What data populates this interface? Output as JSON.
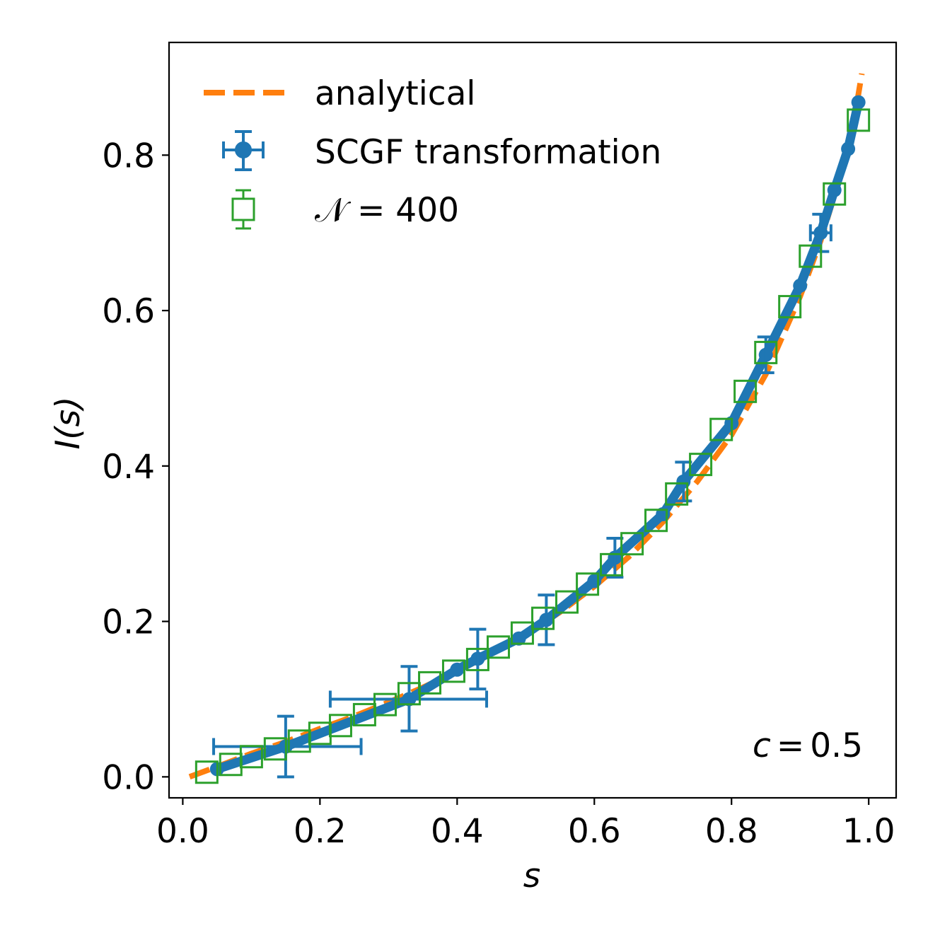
{
  "chart_data": {
    "type": "line",
    "title": "",
    "xlabel": "s",
    "ylabel": "I(s)",
    "xlim": [
      -0.02,
      1.04
    ],
    "ylim": [
      -0.027,
      0.945
    ],
    "xticks": [
      0.0,
      0.2,
      0.4,
      0.6,
      0.8,
      1.0
    ],
    "xtick_labels": [
      "0.0",
      "0.2",
      "0.4",
      "0.6",
      "0.8",
      "1.0"
    ],
    "yticks": [
      0.0,
      0.2,
      0.4,
      0.6,
      0.8
    ],
    "ytick_labels": [
      "0.0",
      "0.2",
      "0.4",
      "0.6",
      "0.8"
    ],
    "grid": false,
    "legend_position": "top-left",
    "annotation": {
      "var": "c",
      "eq": "=",
      "val": "0.5",
      "position": "bottom-right"
    },
    "series": [
      {
        "name": "analytical",
        "style": "dashed",
        "color": "#ff7f0e",
        "x": [
          0.01,
          0.05,
          0.1,
          0.15,
          0.2,
          0.25,
          0.3,
          0.35,
          0.4,
          0.45,
          0.5,
          0.55,
          0.6,
          0.65,
          0.7,
          0.75,
          0.8,
          0.85,
          0.9,
          0.93,
          0.95,
          0.97,
          0.98,
          0.99
        ],
        "y": [
          0.0,
          0.013,
          0.03,
          0.045,
          0.062,
          0.078,
          0.096,
          0.115,
          0.136,
          0.158,
          0.183,
          0.212,
          0.245,
          0.283,
          0.328,
          0.38,
          0.44,
          0.518,
          0.618,
          0.69,
          0.748,
          0.812,
          0.852,
          0.905
        ]
      },
      {
        "name": "SCGF transformation",
        "style": "line+errorbar",
        "color": "#1f77b4",
        "x": [
          0.05,
          0.15,
          0.33,
          0.4,
          0.43,
          0.49,
          0.53,
          0.6,
          0.63,
          0.7,
          0.73,
          0.8,
          0.85,
          0.9,
          0.93,
          0.95,
          0.97,
          0.985
        ],
        "y": [
          0.01,
          0.039,
          0.1,
          0.138,
          0.152,
          0.178,
          0.202,
          0.252,
          0.282,
          0.338,
          0.38,
          0.455,
          0.543,
          0.632,
          0.7,
          0.755,
          0.808,
          0.868
        ],
        "xerr_points": [
          {
            "x": 0.15,
            "y": 0.039,
            "xmin": 0.045,
            "xmax": 0.26,
            "ymin": 0.0,
            "ymax": 0.078
          },
          {
            "x": 0.33,
            "y": 0.1,
            "xmin": 0.215,
            "xmax": 0.443,
            "ymin": 0.059,
            "ymax": 0.142
          },
          {
            "x": 0.43,
            "y": 0.152,
            "xmin": 0.43,
            "xmax": 0.43,
            "ymin": 0.113,
            "ymax": 0.19
          },
          {
            "x": 0.53,
            "y": 0.202,
            "xmin": 0.53,
            "xmax": 0.53,
            "ymin": 0.17,
            "ymax": 0.234
          },
          {
            "x": 0.63,
            "y": 0.282,
            "xmin": 0.63,
            "xmax": 0.63,
            "ymin": 0.257,
            "ymax": 0.307
          },
          {
            "x": 0.73,
            "y": 0.38,
            "xmin": 0.73,
            "xmax": 0.73,
            "ymin": 0.355,
            "ymax": 0.405
          },
          {
            "x": 0.85,
            "y": 0.543,
            "xmin": 0.85,
            "xmax": 0.85,
            "ymin": 0.52,
            "ymax": 0.566
          },
          {
            "x": 0.93,
            "y": 0.7,
            "xmin": 0.915,
            "xmax": 0.945,
            "ymin": 0.676,
            "ymax": 0.724
          }
        ]
      },
      {
        "name": "𝒩 = 400",
        "style": "open-square",
        "color": "#2ca02c",
        "x": [
          0.035,
          0.07,
          0.1,
          0.135,
          0.17,
          0.2,
          0.23,
          0.265,
          0.295,
          0.33,
          0.36,
          0.395,
          0.43,
          0.46,
          0.495,
          0.525,
          0.56,
          0.59,
          0.625,
          0.655,
          0.69,
          0.72,
          0.755,
          0.785,
          0.82,
          0.85,
          0.885,
          0.915,
          0.95,
          0.985
        ],
        "y": [
          0.006,
          0.016,
          0.026,
          0.036,
          0.046,
          0.056,
          0.066,
          0.08,
          0.093,
          0.107,
          0.121,
          0.136,
          0.151,
          0.167,
          0.185,
          0.204,
          0.225,
          0.248,
          0.273,
          0.3,
          0.33,
          0.364,
          0.402,
          0.447,
          0.496,
          0.546,
          0.605,
          0.67,
          0.75,
          0.845
        ]
      }
    ]
  }
}
